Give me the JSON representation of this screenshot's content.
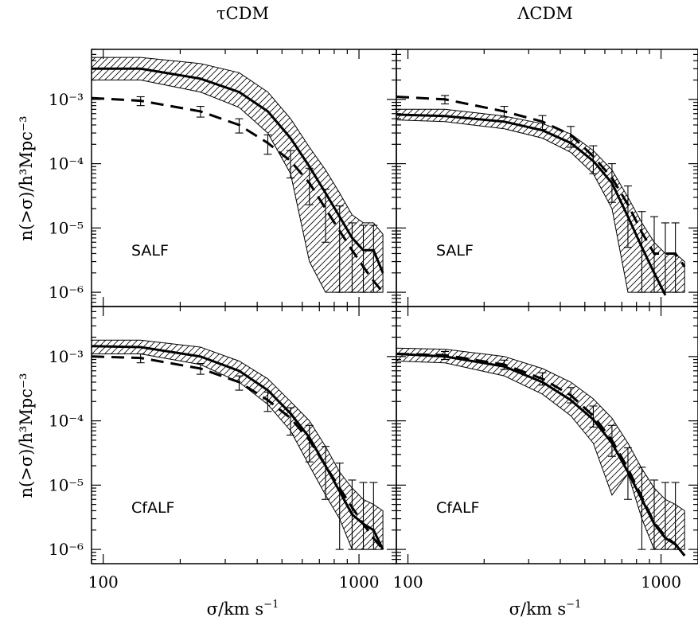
{
  "titles": {
    "left": "τCDM",
    "right": "ΛCDM"
  },
  "axis_labels": {
    "x": "σ/km s",
    "x_sup": "−1",
    "y": "n(>σ)/h³Mpc⁻³"
  },
  "chart_data": [
    {
      "type": "line",
      "title": "τCDM",
      "label": "SALF",
      "xscale": "log",
      "yscale": "log",
      "xlim": [
        90,
        1400
      ],
      "ylim": [
        6e-07,
        0.006
      ],
      "ytick_labels": [
        "10⁻³",
        "10⁻⁴",
        "10⁻⁵",
        "10⁻⁶"
      ],
      "xtick_labels": [],
      "series": [
        {
          "style": "solid",
          "x": [
            90,
            140,
            240,
            340,
            440,
            540,
            640,
            740,
            840,
            940,
            1040,
            1140,
            1240
          ],
          "y": [
            0.003,
            0.003,
            0.0021,
            0.0013,
            0.00065,
            0.00025,
            9e-05,
            3.5e-05,
            1.5e-05,
            7e-06,
            4.5e-06,
            4.5e-06,
            2e-06
          ],
          "band_upper": [
            0.0045,
            0.0045,
            0.0036,
            0.0026,
            0.0013,
            0.0005,
            0.00018,
            8e-05,
            3.5e-05,
            1.6e-05,
            1.2e-05,
            1.2e-05,
            8e-06
          ],
          "band_lower": [
            0.002,
            0.002,
            0.0013,
            0.00075,
            0.0003,
            7e-05,
            3e-06,
            1e-06,
            1e-06,
            1e-06,
            1e-06,
            1e-06,
            1e-06
          ]
        },
        {
          "style": "dashed",
          "x": [
            90,
            140,
            240,
            340,
            440,
            540,
            640,
            740,
            840,
            940,
            1040,
            1140,
            1240
          ],
          "y": [
            0.00105,
            0.00095,
            0.00065,
            0.0004,
            0.00021,
            0.00011,
            5e-05,
            2e-05,
            9e-06,
            4.5e-06,
            2.5e-06,
            1.5e-06,
            1e-06
          ],
          "err_low": [
            null,
            0.0008,
            0.00053,
            0.0003,
            0.00014,
            6e-05,
            2.3e-05,
            6e-06,
            1e-06,
            1e-06,
            1e-06,
            1e-06,
            null
          ],
          "err_high": [
            null,
            0.0011,
            0.00078,
            0.0005,
            0.00028,
            0.00016,
            8.5e-05,
            4e-05,
            2.2e-05,
            1.2e-05,
            1.1e-05,
            1.1e-05,
            null
          ]
        }
      ]
    },
    {
      "type": "line",
      "title": "ΛCDM",
      "label": "SALF",
      "xscale": "log",
      "yscale": "log",
      "xlim": [
        90,
        1400
      ],
      "ylim": [
        6e-07,
        0.006
      ],
      "ytick_labels": [],
      "xtick_labels": [],
      "series": [
        {
          "style": "solid",
          "x": [
            90,
            140,
            240,
            340,
            440,
            540,
            640,
            740,
            840,
            940,
            1040,
            1140,
            1240
          ],
          "y": [
            0.00058,
            0.00055,
            0.00045,
            0.00033,
            0.00021,
            0.00011,
            5e-05,
            1.5e-05,
            5e-06,
            2e-06,
            9e-07,
            null,
            null
          ],
          "band_upper": [
            0.0007,
            0.0007,
            0.00055,
            0.00042,
            0.00029,
            0.00016,
            8e-05,
            3e-05,
            1.2e-05,
            6e-06,
            4e-06,
            4e-06,
            3e-06
          ],
          "band_lower": [
            0.00048,
            0.00045,
            0.00035,
            0.00025,
            0.00015,
            7e-05,
            2e-05,
            1e-06,
            1e-06,
            1e-06,
            1e-06,
            1e-06,
            1e-06
          ]
        },
        {
          "style": "dashed",
          "x": [
            90,
            140,
            240,
            340,
            440,
            540,
            640,
            740,
            840,
            940,
            1040,
            1140,
            1240
          ],
          "y": [
            0.0011,
            0.001,
            0.00065,
            0.00045,
            0.00028,
            0.00013,
            6e-05,
            2.3e-05,
            8.5e-06,
            4e-06,
            4e-06,
            4e-06,
            2.5e-06
          ],
          "err_low": [
            null,
            0.00085,
            0.00053,
            0.00034,
            0.00018,
            7e-05,
            2.5e-05,
            5e-06,
            1e-06,
            1e-06,
            1e-06,
            1e-06,
            null
          ],
          "err_high": [
            null,
            0.00115,
            0.00078,
            0.00056,
            0.00038,
            0.00019,
            0.0001,
            4.5e-05,
            1.8e-05,
            1.5e-05,
            1.2e-05,
            1.2e-05,
            null
          ]
        }
      ]
    },
    {
      "type": "line",
      "title": "",
      "label": "CfALF",
      "xscale": "log",
      "yscale": "log",
      "xlim": [
        90,
        1400
      ],
      "ylim": [
        6e-07,
        0.006
      ],
      "ytick_labels": [
        "10⁻³",
        "10⁻⁴",
        "10⁻⁵",
        "10⁻⁶"
      ],
      "xtick_labels": [
        "100",
        "1000"
      ],
      "series": [
        {
          "style": "solid",
          "x": [
            90,
            140,
            240,
            340,
            440,
            540,
            640,
            740,
            840,
            940,
            1040,
            1140,
            1240
          ],
          "y": [
            0.00145,
            0.0014,
            0.001,
            0.0006,
            0.0003,
            0.00013,
            5.5e-05,
            2e-05,
            8e-06,
            3.5e-06,
            2.5e-06,
            2e-06,
            1e-06
          ],
          "band_upper": [
            0.0018,
            0.0018,
            0.0014,
            0.00085,
            0.00045,
            0.0002,
            0.0001,
            4e-05,
            1.6e-05,
            9e-06,
            6e-06,
            5e-06,
            4e-06
          ],
          "band_lower": [
            0.0011,
            0.0011,
            0.00075,
            0.0004,
            0.00018,
            7e-05,
            2e-05,
            7e-06,
            3e-06,
            1e-06,
            1e-06,
            1e-06,
            1e-06
          ]
        },
        {
          "style": "dashed",
          "x": [
            90,
            140,
            240,
            340,
            440,
            540,
            640,
            740,
            840,
            940,
            1040,
            1140,
            1240
          ],
          "y": [
            0.001,
            0.00095,
            0.00065,
            0.0004,
            0.00021,
            0.00011,
            5e-05,
            2e-05,
            9e-06,
            4.5e-06,
            2.5e-06,
            1.5e-06,
            1e-06
          ],
          "err_low": [
            null,
            0.0008,
            0.00053,
            0.0003,
            0.00014,
            6e-05,
            2.3e-05,
            6e-06,
            1e-06,
            1e-06,
            1e-06,
            1e-06,
            null
          ],
          "err_high": [
            null,
            0.0011,
            0.00078,
            0.0005,
            0.00028,
            0.00016,
            8.5e-05,
            4e-05,
            2.2e-05,
            1.2e-05,
            1.1e-05,
            1.1e-05,
            null
          ]
        }
      ]
    },
    {
      "type": "line",
      "title": "",
      "label": "CfALF",
      "xscale": "log",
      "yscale": "log",
      "xlim": [
        90,
        1400
      ],
      "ylim": [
        6e-07,
        0.006
      ],
      "ytick_labels": [],
      "xtick_labels": [
        "100",
        "1000"
      ],
      "series": [
        {
          "style": "solid",
          "x": [
            90,
            140,
            240,
            340,
            440,
            540,
            640,
            740,
            840,
            940,
            1040,
            1140,
            1240
          ],
          "y": [
            0.0011,
            0.001,
            0.0007,
            0.0004,
            0.00021,
            0.000105,
            4.5e-05,
            1.6e-05,
            6e-06,
            2.5e-06,
            1.5e-06,
            1.2e-06,
            8e-07
          ],
          "band_upper": [
            0.00135,
            0.0013,
            0.001,
            0.00065,
            0.0004,
            0.00022,
            0.00011,
            4.5e-05,
            1.8e-05,
            9e-06,
            6e-06,
            5e-06,
            4e-06
          ],
          "band_lower": [
            0.00085,
            0.0008,
            0.0005,
            0.00026,
            0.00012,
            4.5e-05,
            7e-06,
            1.5e-05,
            3e-06,
            1e-06,
            1e-06,
            1e-06,
            1e-06
          ]
        },
        {
          "style": "dashed",
          "x": [
            90,
            140,
            240,
            340,
            440,
            540,
            640,
            740,
            840,
            940,
            1040,
            1140,
            1240
          ],
          "y": [
            0.0011,
            0.00105,
            0.00075,
            0.00045,
            0.00025,
            0.00012,
            5e-05,
            1.8e-05,
            6.5e-06,
            2.6e-06,
            1.6e-06,
            1.2e-06,
            8e-07
          ],
          "err_low": [
            null,
            0.0009,
            0.00063,
            0.00036,
            0.00019,
            8e-05,
            2.8e-05,
            6e-06,
            1e-06,
            1e-06,
            1e-06,
            1e-06,
            null
          ],
          "err_high": [
            null,
            0.0012,
            0.00088,
            0.00056,
            0.00033,
            0.00017,
            8.5e-05,
            3.8e-05,
            1.9e-05,
            1.2e-05,
            1.1e-05,
            1.1e-05,
            null
          ]
        }
      ]
    }
  ]
}
